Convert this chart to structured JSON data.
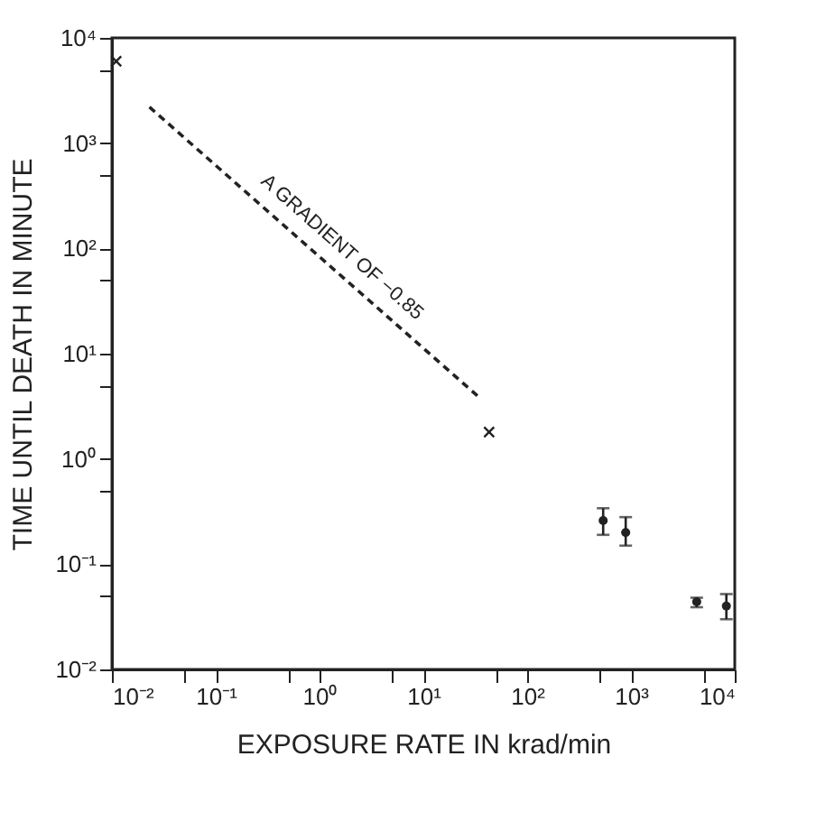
{
  "chart_data": {
    "type": "scatter",
    "xlabel": "EXPOSURE RATE IN krad/min",
    "ylabel": "TIME UNTIL DEATH IN MINUTE",
    "log": "xy",
    "grid": false,
    "xlim": [
      0.01,
      10000
    ],
    "ylim": [
      0.01,
      10000
    ],
    "xticks": [
      {
        "value": 0.01,
        "label": "10⁻²"
      },
      {
        "value": 0.05,
        "label": null
      },
      {
        "value": 0.1,
        "label": "10⁻¹"
      },
      {
        "value": 0.5,
        "label": null
      },
      {
        "value": 1,
        "label": "10⁰"
      },
      {
        "value": 5,
        "label": null
      },
      {
        "value": 10,
        "label": "10¹"
      },
      {
        "value": 50,
        "label": null
      },
      {
        "value": 100,
        "label": "10²"
      },
      {
        "value": 500,
        "label": null
      },
      {
        "value": 1000,
        "label": "10³"
      },
      {
        "value": 5000,
        "label": null
      },
      {
        "value": 10000,
        "label": "10⁴"
      }
    ],
    "yticks": [
      {
        "value": 0.01,
        "label": "10⁻²"
      },
      {
        "value": 0.05,
        "label": null
      },
      {
        "value": 0.1,
        "label": "10⁻¹"
      },
      {
        "value": 0.5,
        "label": null
      },
      {
        "value": 1,
        "label": "10⁰"
      },
      {
        "value": 5,
        "label": null
      },
      {
        "value": 10,
        "label": "10¹"
      },
      {
        "value": 50,
        "label": null
      },
      {
        "value": 100,
        "label": "10²"
      },
      {
        "value": 500,
        "label": null
      },
      {
        "value": 1000,
        "label": "10³"
      },
      {
        "value": 5000,
        "label": null
      },
      {
        "value": 10000,
        "label": "10⁴"
      }
    ],
    "series": [
      {
        "type": "line",
        "color": "#222222",
        "line_style": "dashed",
        "marker": "none",
        "x": [
          0.023,
          34
        ],
        "values": [
          2200,
          3.9
        ]
      },
      {
        "color": "#222222",
        "marker": "cross",
        "x": [
          0.011,
          43
        ],
        "values": [
          6000,
          1.8
        ]
      },
      {
        "color": "#222222",
        "marker": "circle",
        "x": [
          540,
          890,
          4300,
          8300
        ],
        "values": [
          0.26,
          0.2,
          0.044,
          0.04
        ],
        "errors": [
          [
            0.19,
            0.34
          ],
          [
            0.15,
            0.28
          ],
          [
            0.039,
            0.048
          ],
          [
            0.03,
            0.052
          ]
        ]
      }
    ],
    "annotations": [
      "A GRADIENT OF −0.85"
    ]
  }
}
